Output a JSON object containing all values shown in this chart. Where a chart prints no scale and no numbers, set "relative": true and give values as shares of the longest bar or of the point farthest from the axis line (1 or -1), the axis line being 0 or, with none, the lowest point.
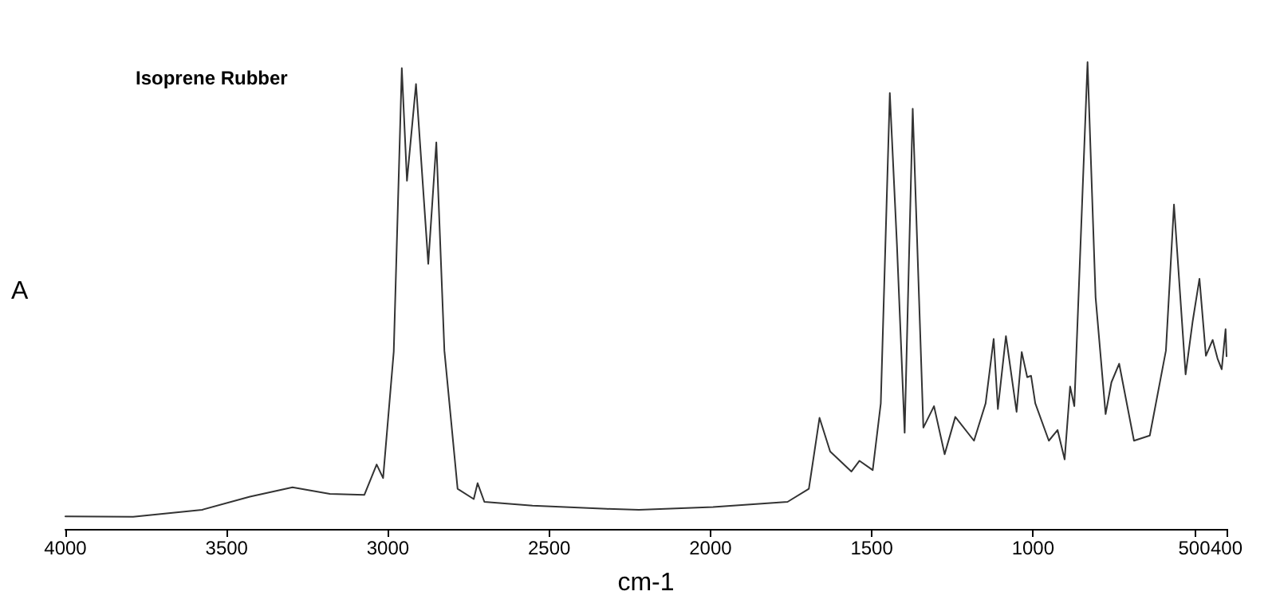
{
  "chart_data": {
    "type": "line",
    "title": "Isoprene Rubber",
    "xlabel": "cm-1",
    "ylabel": "A",
    "relative": true,
    "xlim": [
      4000,
      400
    ],
    "xticks": [
      4000,
      3500,
      3000,
      2500,
      2000,
      1500,
      1000,
      500,
      400
    ],
    "grid": false,
    "marker": "none",
    "line_style": "solid",
    "series": [
      {
        "color": "#333333",
        "x": [
          4000,
          3790,
          3576,
          3428,
          3296,
          3180,
          3073,
          3035,
          3015,
          2982,
          2957,
          2941,
          2913,
          2875,
          2850,
          2825,
          2784,
          2734,
          2722,
          2701,
          2552,
          2322,
          2222,
          1992,
          1761,
          1695,
          1662,
          1629,
          1563,
          1538,
          1497,
          1472,
          1444,
          1422,
          1398,
          1373,
          1340,
          1307,
          1274,
          1241,
          1183,
          1147,
          1122,
          1109,
          1084,
          1051,
          1035,
          1018,
          1006,
          993,
          951,
          924,
          902,
          885,
          872,
          831,
          806,
          775,
          757,
          733,
          687,
          638,
          588,
          563,
          527,
          505,
          484,
          464,
          443,
          428,
          415,
          403,
          400
        ],
        "values": [
          0.027,
          0.026,
          0.041,
          0.069,
          0.089,
          0.075,
          0.073,
          0.138,
          0.109,
          0.38,
          0.987,
          0.746,
          0.953,
          0.568,
          0.828,
          0.382,
          0.086,
          0.064,
          0.098,
          0.058,
          0.05,
          0.043,
          0.041,
          0.047,
          0.058,
          0.086,
          0.238,
          0.166,
          0.123,
          0.146,
          0.126,
          0.269,
          0.934,
          0.61,
          0.206,
          0.9,
          0.217,
          0.263,
          0.16,
          0.24,
          0.189,
          0.269,
          0.407,
          0.257,
          0.413,
          0.251,
          0.379,
          0.325,
          0.328,
          0.269,
          0.189,
          0.212,
          0.149,
          0.305,
          0.263,
          1,
          0.496,
          0.246,
          0.314,
          0.354,
          0.189,
          0.2,
          0.382,
          0.695,
          0.331,
          0.445,
          0.536,
          0.371,
          0.405,
          0.365,
          0.342,
          0.428,
          0.37
        ]
      }
    ]
  }
}
